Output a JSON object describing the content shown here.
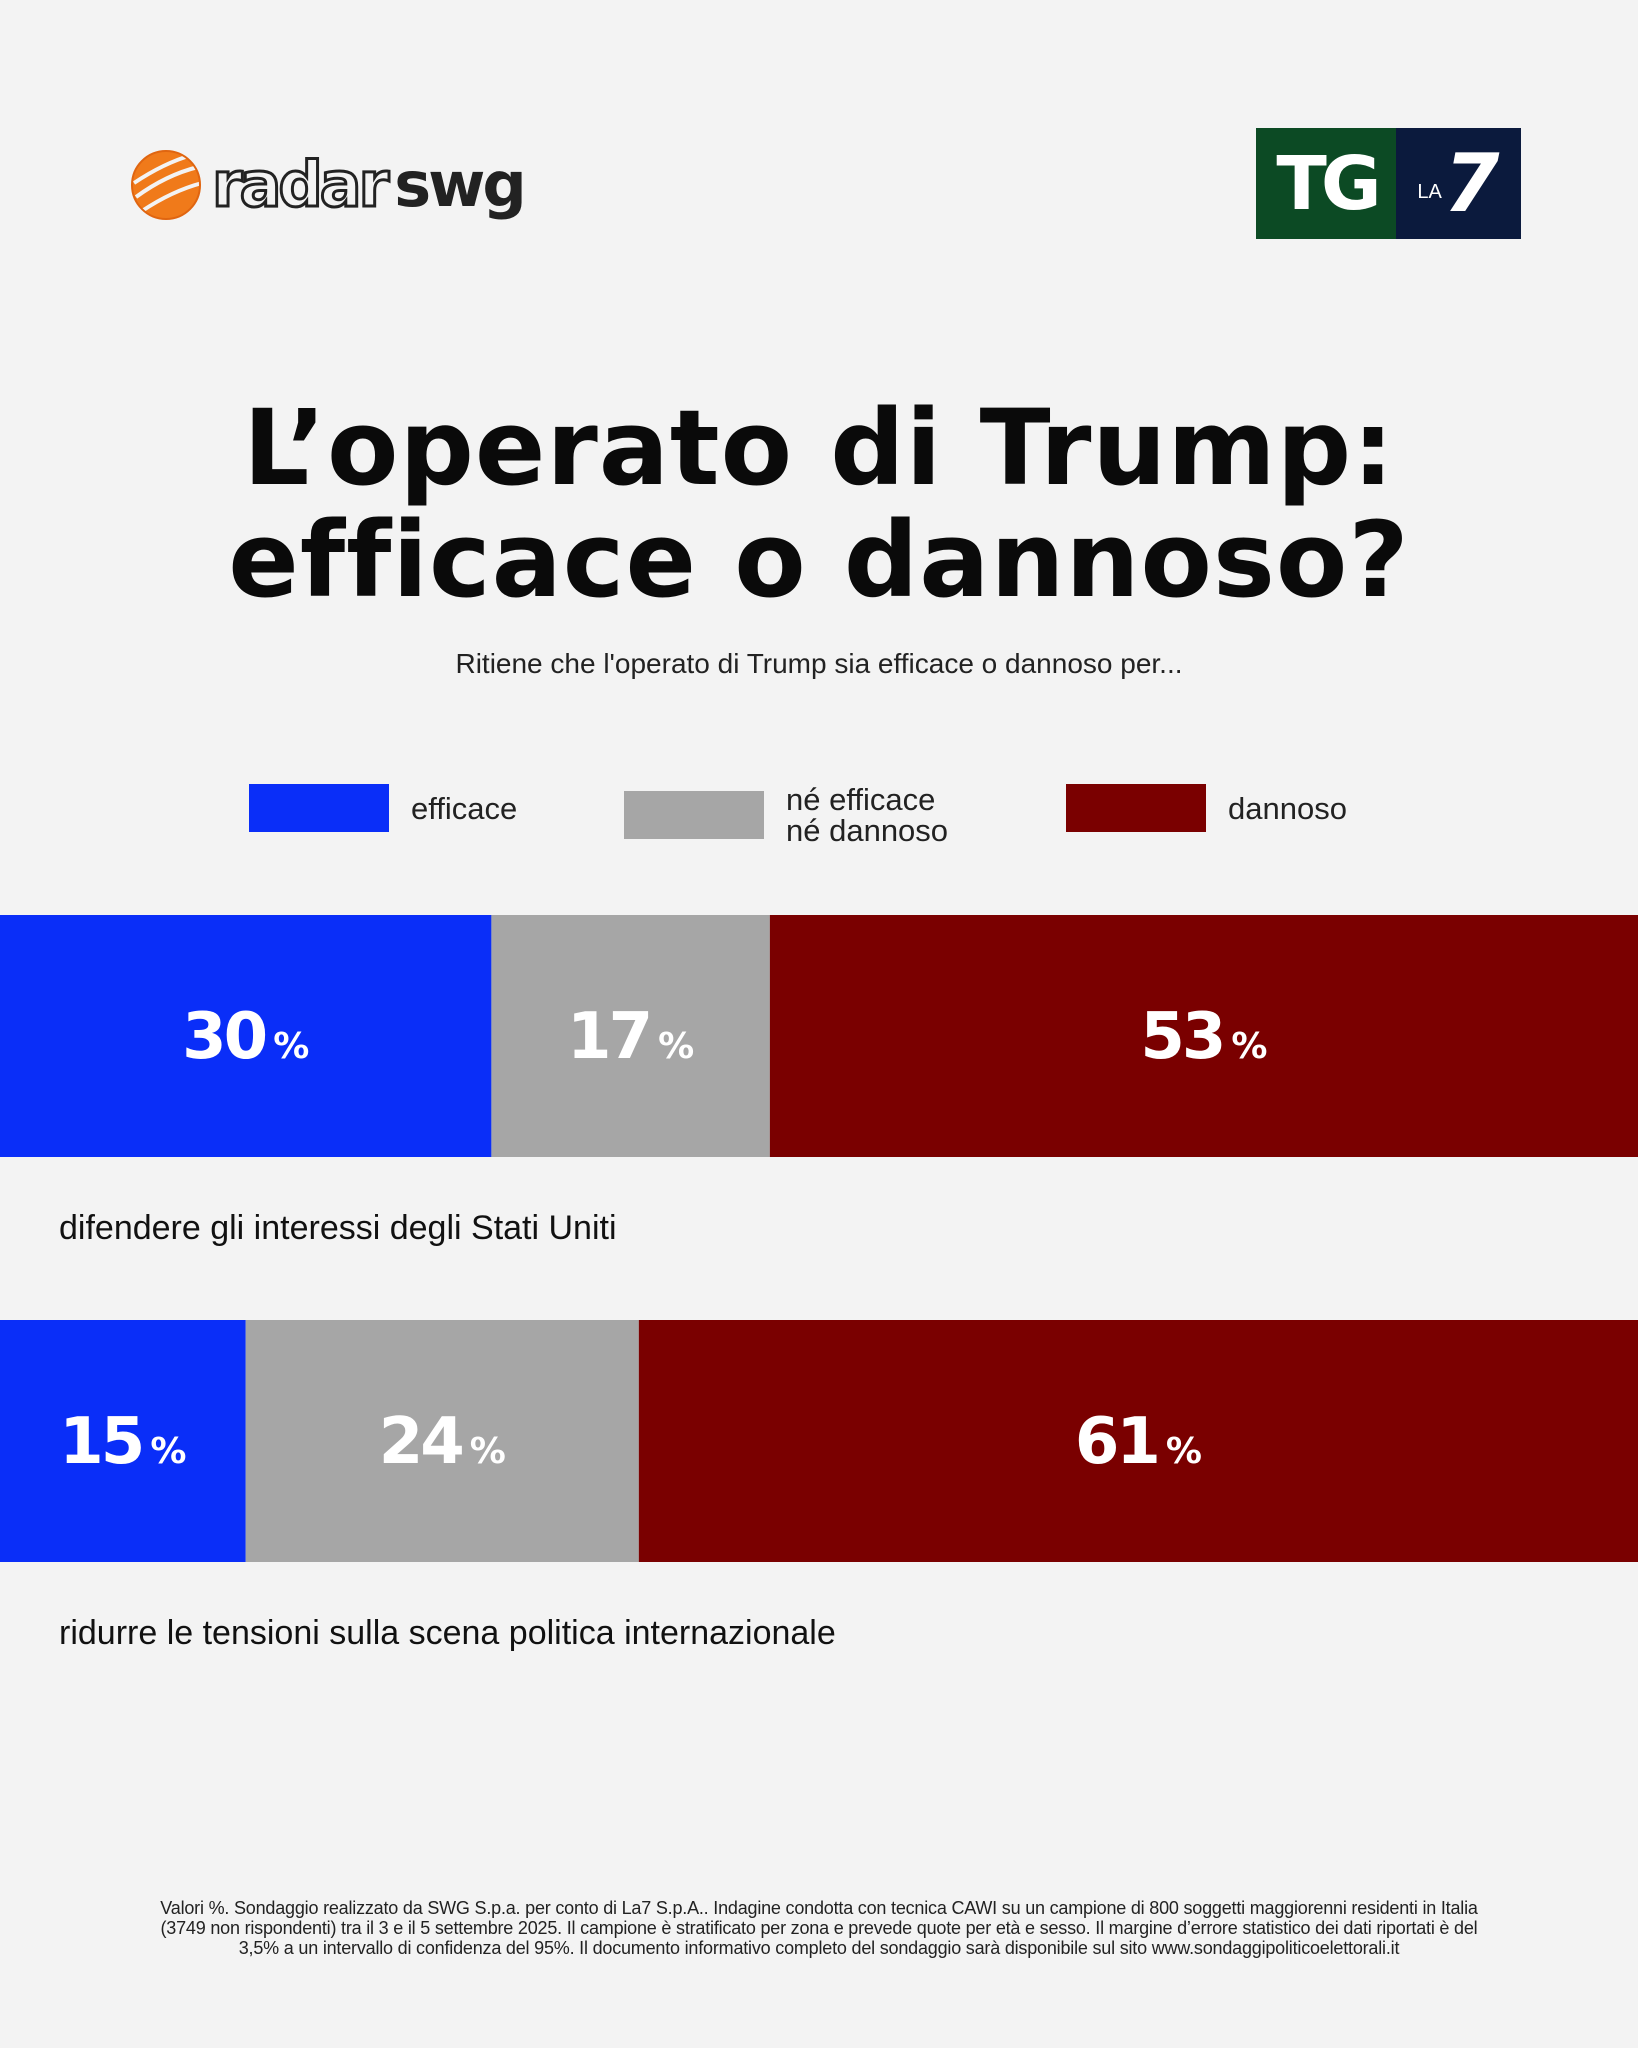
{
  "header": {
    "brand_left_part1": "radar",
    "brand_left_part2": "swg",
    "brand_right_tg": "TG",
    "brand_right_la": "LA",
    "brand_right_seven": "7"
  },
  "chart_data": {
    "type": "bar",
    "orientation": "horizontal-stacked-100",
    "title_line1": "L’operato di Trump:",
    "title_line2": "efficace o dannoso?",
    "subtitle": "Ritiene che l'operato di Trump sia efficace o dannoso per...",
    "categories": [
      "difendere gli interessi degli Stati Uniti",
      "ridurre le tensioni sulla scena politica internazionale"
    ],
    "series": [
      {
        "name": "efficace",
        "color": "#0a2ef8",
        "values": [
          30,
          15
        ]
      },
      {
        "name": "né efficace\nné dannoso",
        "color": "#a6a6a6",
        "values": [
          17,
          24
        ]
      },
      {
        "name": "dannoso",
        "color": "#7a0000",
        "values": [
          53,
          61
        ]
      }
    ],
    "value_suffix": "%",
    "legend_position": "top",
    "xlim": [
      0,
      100
    ]
  },
  "footnote": "Valori %. Sondaggio realizzato da SWG S.p.a. per conto di La7 S.p.A.. Indagine condotta con tecnica CAWI su un campione di 800 soggetti maggiorenni residenti in Italia (3749 non rispondenti) tra il 3 e il 5 settembre 2025. Il campione è stratificato per zona e prevede quote per età e sesso. Il margine d’errore statistico dei dati riportati è del 3,5% a un intervallo di confidenza del 95%. Il documento informativo completo del sondaggio sarà disponibile sul sito www.sondaggipoliticoelettorali.it"
}
